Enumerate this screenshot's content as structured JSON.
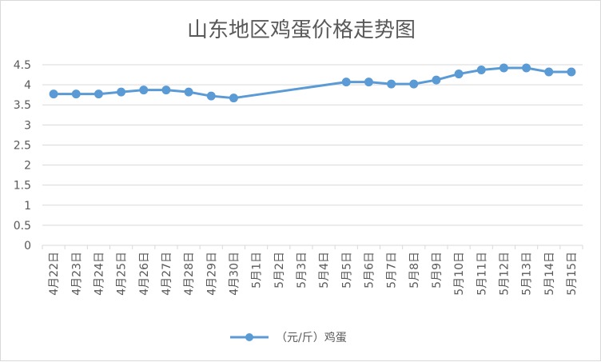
{
  "chart_data": {
    "type": "line",
    "title": "山东地区鸡蛋价格走势图",
    "categories": [
      "4月22日",
      "4月23日",
      "4月24日",
      "4月25日",
      "4月26日",
      "4月27日",
      "4月28日",
      "4月29日",
      "4月30日",
      "5月1日",
      "5月2日",
      "5月3日",
      "5月4日",
      "5月5日",
      "5月6日",
      "5月7日",
      "5月8日",
      "5月9日",
      "5月10日",
      "5月11日",
      "5月12日",
      "5月13日",
      "5月14日",
      "5月15日"
    ],
    "series": [
      {
        "name": "（元/斤）鸡蛋",
        "color": "#5b9bd5",
        "values": [
          3.77,
          3.77,
          3.77,
          3.82,
          3.87,
          3.87,
          3.82,
          3.72,
          3.67,
          null,
          null,
          null,
          null,
          4.07,
          4.07,
          4.02,
          4.02,
          4.12,
          4.27,
          4.37,
          4.42,
          4.42,
          4.32,
          4.32
        ]
      }
    ],
    "ylim": [
      0,
      4.5
    ],
    "yticks": [
      "0",
      "0.5",
      "1",
      "1.5",
      "2",
      "2.5",
      "3",
      "3.5",
      "4",
      "4.5"
    ],
    "gaps": "connect",
    "grid": true,
    "legend": "bottom"
  }
}
